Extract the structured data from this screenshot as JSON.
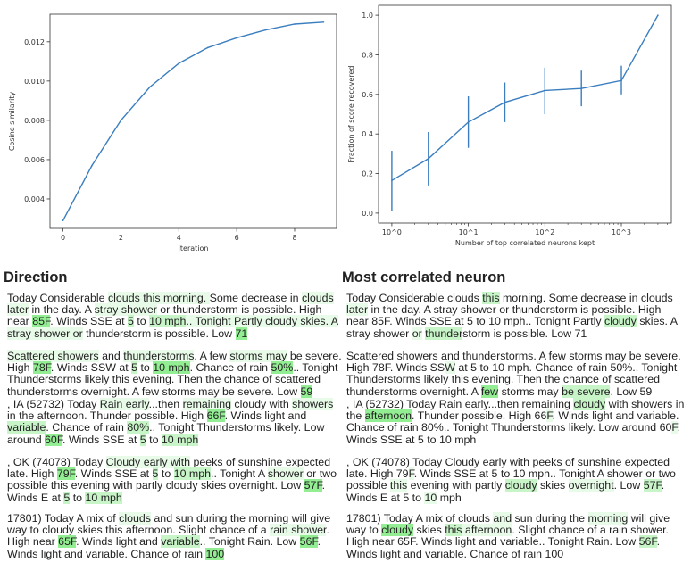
{
  "chart_data": [
    {
      "type": "line",
      "xlabel": "Iteration",
      "ylabel": "Cosine similarity",
      "x": [
        0,
        1,
        2,
        3,
        4,
        5,
        6,
        7,
        8,
        9
      ],
      "y": [
        0.0029,
        0.0057,
        0.008,
        0.0097,
        0.0109,
        0.0117,
        0.0122,
        0.0126,
        0.0129,
        0.013
      ],
      "xticks": [
        0,
        2,
        4,
        6,
        8
      ],
      "xtick_labels": [
        "0",
        "2",
        "4",
        "6",
        "8"
      ],
      "yticks": [
        0.004,
        0.006,
        0.008,
        0.01,
        0.012
      ],
      "ytick_labels": [
        "0.004",
        "0.006",
        "0.008",
        "0.010",
        "0.012"
      ],
      "xlim": [
        -0.45,
        9.45
      ],
      "ylim": [
        0.0025,
        0.0134
      ],
      "grid": false,
      "color": "#3a7ebf"
    },
    {
      "type": "line",
      "xscale": "log",
      "xlabel": "Number of top correlated neurons kept",
      "ylabel": "Fraction of score recovered",
      "x": [
        1,
        3,
        10,
        30,
        100,
        300,
        1000,
        3000
      ],
      "y": [
        0.165,
        0.275,
        0.46,
        0.56,
        0.62,
        0.63,
        0.67,
        1.0
      ],
      "error_low": [
        0.01,
        0.14,
        0.33,
        0.46,
        0.5,
        0.54,
        0.6,
        null
      ],
      "error_high": [
        0.315,
        0.41,
        0.59,
        0.66,
        0.735,
        0.72,
        0.745,
        null
      ],
      "xticks": [
        1,
        10,
        100,
        1000
      ],
      "xtick_labels": [
        "10^0",
        "10^1",
        "10^2",
        "10^3"
      ],
      "yticks": [
        0.0,
        0.2,
        0.4,
        0.6,
        0.8,
        1.0
      ],
      "ytick_labels": [
        "0.0",
        "0.2",
        "0.4",
        "0.6",
        "0.8",
        "1.0"
      ],
      "xlim": [
        0.67,
        4500
      ],
      "ylim": [
        -0.05,
        1.05
      ],
      "grid": false,
      "color": "#3a7ebf"
    }
  ],
  "highlight_colors": {
    "1": "#e8fbe8",
    "2": "#c8f5c8",
    "3": "#93ee93"
  },
  "direction": {
    "title": "Direction",
    "paragraphs": [
      [
        [
          "Today Considerable ",
          0
        ],
        [
          "clouds",
          1
        ],
        [
          " this morning. ",
          1
        ],
        [
          "Some decrease in ",
          0
        ],
        [
          "clouds",
          1
        ],
        [
          " later",
          1
        ],
        [
          " in the day. A ",
          0
        ],
        [
          "stray",
          1
        ],
        [
          " shower",
          1
        ],
        [
          " or thunderstorm is possible. High near ",
          0
        ],
        [
          "85F",
          3
        ],
        [
          ". Winds SSE at ",
          0
        ],
        [
          "5",
          2
        ],
        [
          " to ",
          0
        ],
        [
          "10 mph",
          2
        ],
        [
          ".. Tonight Partly cloudy skies. A stray shower or",
          1
        ],
        [
          " thunderstorm is possible. Low ",
          0
        ],
        [
          "71",
          3
        ]
      ],
      [
        [
          "Scattered showers",
          1
        ],
        [
          " and ",
          0
        ],
        [
          "thunderstorms",
          1
        ],
        [
          ". A few ",
          0
        ],
        [
          "storms may",
          1
        ],
        [
          " be severe. High ",
          0
        ],
        [
          "78F",
          3
        ],
        [
          ". Winds SSW at ",
          0
        ],
        [
          "5",
          2
        ],
        [
          " to ",
          0
        ],
        [
          "10 mph",
          3
        ],
        [
          ". Chance of rain ",
          0
        ],
        [
          "50%",
          3
        ],
        [
          ".. Tonight Thunderstorms likely this evening. Then the chance of scattered thunderstorms overnight. A few storms may be severe. Low ",
          0
        ],
        [
          "59",
          3
        ]
      ],
      [
        [
          ", IA (52732) Today ",
          0
        ],
        [
          "Rain early",
          1
        ],
        [
          "...then ",
          0
        ],
        [
          "remaining",
          1
        ],
        [
          " cloudy with ",
          0
        ],
        [
          "showers",
          1
        ],
        [
          " in the afternoon. Thunder possible. High ",
          0
        ],
        [
          "66F",
          3
        ],
        [
          ". Winds light and ",
          0
        ],
        [
          "variable",
          2
        ],
        [
          ". Chance of rain ",
          0
        ],
        [
          "80%",
          2
        ],
        [
          ".. Tonight Thunderstorms likely. Low around ",
          0
        ],
        [
          "60F",
          3
        ],
        [
          ". Winds SSE at ",
          0
        ],
        [
          "5",
          2
        ],
        [
          " to ",
          0
        ],
        [
          "10 mph",
          2
        ]
      ],
      [
        [
          ", OK (74078) Today ",
          0
        ],
        [
          "Cloudy",
          1
        ],
        [
          " early with",
          1
        ],
        [
          " peeks of sunshine expected late. High ",
          0
        ],
        [
          "79F",
          3
        ],
        [
          ". Winds SSE at ",
          0
        ],
        [
          "5",
          2
        ],
        [
          " to ",
          0
        ],
        [
          "10 mph",
          2
        ],
        [
          ".. Tonight A ",
          0
        ],
        [
          "shower",
          1
        ],
        [
          " or two possible this evening with partly cloudy skies overnight. Low ",
          0
        ],
        [
          "57F",
          3
        ],
        [
          ". Winds E at ",
          0
        ],
        [
          "5",
          2
        ],
        [
          " to ",
          0
        ],
        [
          "10 mph",
          2
        ]
      ],
      [
        [
          "17801) Today A mix of ",
          0
        ],
        [
          "clouds",
          1
        ],
        [
          " and sun during the morning will give way to cloudy skies this afternoon. Slight chance of a ",
          0
        ],
        [
          "rain shower",
          1
        ],
        [
          ". High near ",
          0
        ],
        [
          "65F",
          3
        ],
        [
          ". Winds light and ",
          0
        ],
        [
          "variable",
          2
        ],
        [
          ".. Tonight Rain. Low ",
          0
        ],
        [
          "56F",
          3
        ],
        [
          ". Winds light and variable. Chance of rain ",
          0
        ],
        [
          "100",
          3
        ]
      ]
    ]
  },
  "neuron": {
    "title": "Most correlated neuron",
    "paragraphs": [
      [
        [
          "Today Considerable clouds ",
          0
        ],
        [
          "this",
          2
        ],
        [
          " morning. Some decrease in clouds ",
          0
        ],
        [
          "later",
          1
        ],
        [
          " in the day. A stray shower or thunderstorm is possible. High near 85F. Winds SSE at 5 to 10 mph.. Tonight Partly ",
          0
        ],
        [
          "cloudy",
          2
        ],
        [
          " skies. A stray shower ",
          0
        ],
        [
          "or",
          1
        ],
        [
          " ",
          0
        ],
        [
          "thunder",
          2
        ],
        [
          "storm is possible. Low 71",
          0
        ]
      ],
      [
        [
          "Scattered showers and thunderstorms. A few storms may be severe. High 78F. Winds SS",
          0
        ],
        [
          "W",
          1
        ],
        [
          " at 5 to 10 mph. Chance of rain 50%.. Tonight Thunderstorms likely this evening. Then the chance of scattered thunderstorms overnight. A ",
          0
        ],
        [
          "few",
          3
        ],
        [
          " storms may ",
          0
        ],
        [
          "be severe",
          2
        ],
        [
          ". Low 59",
          0
        ]
      ],
      [
        [
          ", IA (52732) Today Rain early...then remaining ",
          0
        ],
        [
          "cloudy",
          2
        ],
        [
          " with showers in the ",
          0
        ],
        [
          "afternoon",
          3
        ],
        [
          ". Thunder possible. High 66",
          0
        ],
        [
          "F",
          1
        ],
        [
          ". Winds light and variable. Chance of rain 80%.. Tonight Thunderstorms likely. Low around 60",
          0
        ],
        [
          "F",
          1
        ],
        [
          ". Winds SSE at 5 to 10 mph",
          0
        ]
      ],
      [
        [
          ", OK (74078) Today Cloudy early with peeks of sunshine expected late. High 79",
          0
        ],
        [
          "F",
          1
        ],
        [
          ". Winds SSE at 5 to 10 mph.. Tonight A shower or two possible ",
          0
        ],
        [
          "this",
          1
        ],
        [
          " evening with partly ",
          0
        ],
        [
          "cloudy",
          2
        ],
        [
          " skies ",
          0
        ],
        [
          "overnight",
          1
        ],
        [
          ". Low ",
          0
        ],
        [
          "57F",
          2
        ],
        [
          ". Winds E at 5 to ",
          0
        ],
        [
          "10",
          1
        ],
        [
          " mph",
          0
        ]
      ],
      [
        [
          "17801) Today A mix of clouds ",
          0
        ],
        [
          "and",
          1
        ],
        [
          " sun during the ",
          0
        ],
        [
          "morning",
          1
        ],
        [
          " will give way to ",
          0
        ],
        [
          "cloudy",
          3
        ],
        [
          " skies ",
          0
        ],
        [
          "this",
          2
        ],
        [
          " afternoon",
          1
        ],
        [
          ". Slight chance of a rain shower. High near 65F. Winds light and variable.. Tonight Rain. Low ",
          0
        ],
        [
          "56F",
          2
        ],
        [
          ". Winds light and variable. Chance of rain 100",
          0
        ]
      ]
    ]
  }
}
